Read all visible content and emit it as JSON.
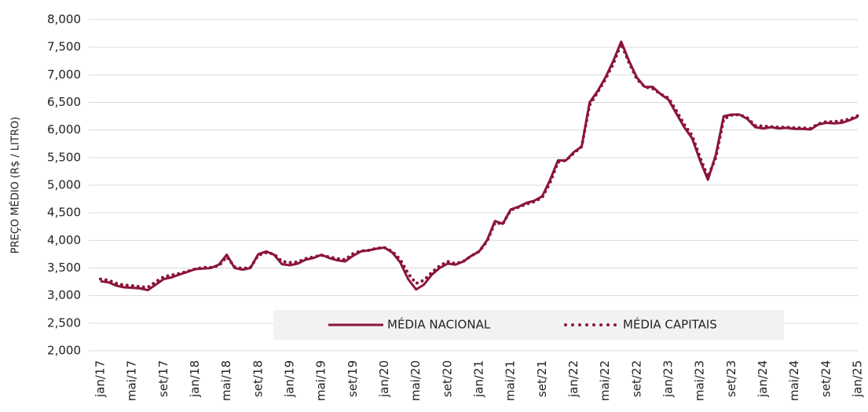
{
  "chart_data": {
    "type": "line",
    "y_label": "PREÇO MÉDIO (R$ / LITRO)",
    "categories": [
      "jan/17",
      null,
      null,
      null,
      "mai/17",
      null,
      null,
      null,
      "set/17",
      null,
      null,
      null,
      "jan/18",
      null,
      null,
      null,
      "mai/18",
      null,
      null,
      null,
      "set/18",
      null,
      null,
      null,
      "jan/19",
      null,
      null,
      null,
      "mai/19",
      null,
      null,
      null,
      "set/19",
      null,
      null,
      null,
      "jan/20",
      null,
      null,
      null,
      "mai/20",
      null,
      null,
      null,
      "set/20",
      null,
      null,
      null,
      "jan/21",
      null,
      null,
      null,
      "mai/21",
      null,
      null,
      null,
      "set/21",
      null,
      null,
      null,
      "jan/22",
      null,
      null,
      null,
      "mai/22",
      null,
      null,
      null,
      "set/22",
      null,
      null,
      null,
      "jan/23",
      null,
      null,
      null,
      "mai/23",
      null,
      null,
      null,
      "set/23",
      null,
      null,
      null,
      "jan/24",
      null,
      null,
      null,
      "mai/24",
      null,
      null,
      null,
      "set/24",
      null,
      null,
      null,
      "jan/25"
    ],
    "series": [
      {
        "name": "MÉDIA NACIONAL",
        "color": "#8b1538",
        "style": "solid",
        "values": [
          3260,
          3240,
          3180,
          3150,
          3140,
          3130,
          3100,
          3200,
          3300,
          3330,
          3380,
          3430,
          3480,
          3490,
          3500,
          3560,
          3740,
          3500,
          3470,
          3500,
          3750,
          3800,
          3740,
          3570,
          3550,
          3580,
          3650,
          3680,
          3740,
          3680,
          3640,
          3620,
          3720,
          3800,
          3820,
          3850,
          3870,
          3780,
          3600,
          3300,
          3110,
          3200,
          3380,
          3500,
          3580,
          3560,
          3620,
          3720,
          3800,
          4000,
          4350,
          4300,
          4560,
          4610,
          4680,
          4720,
          4800,
          5100,
          5450,
          5450,
          5600,
          5700,
          6500,
          6700,
          6950,
          7250,
          7600,
          7250,
          6950,
          6780,
          6780,
          6650,
          6550,
          6300,
          6050,
          5850,
          5450,
          5100,
          5550,
          6250,
          6280,
          6280,
          6200,
          6050,
          6030,
          6050,
          6030,
          6040,
          6020,
          6020,
          6010,
          6100,
          6130,
          6120,
          6130,
          6180,
          6240
        ]
      },
      {
        "name": "MÉDIA CAPITAIS",
        "color": "#8b1538",
        "style": "dotted",
        "values": [
          3300,
          3280,
          3220,
          3190,
          3180,
          3160,
          3150,
          3250,
          3340,
          3370,
          3400,
          3440,
          3480,
          3510,
          3510,
          3540,
          3700,
          3520,
          3490,
          3510,
          3730,
          3780,
          3750,
          3620,
          3600,
          3610,
          3670,
          3700,
          3730,
          3700,
          3670,
          3650,
          3760,
          3810,
          3820,
          3860,
          3870,
          3800,
          3650,
          3400,
          3220,
          3280,
          3420,
          3540,
          3620,
          3580,
          3620,
          3720,
          3800,
          3980,
          4320,
          4300,
          4550,
          4600,
          4660,
          4700,
          4780,
          5050,
          5420,
          5450,
          5580,
          5700,
          6450,
          6680,
          6920,
          7200,
          7560,
          7220,
          6920,
          6780,
          6750,
          6650,
          6580,
          6350,
          6100,
          5900,
          5500,
          5150,
          5500,
          6200,
          6270,
          6280,
          6220,
          6080,
          6070,
          6060,
          6050,
          6050,
          6040,
          6040,
          6030,
          6110,
          6150,
          6150,
          6170,
          6200,
          6260
        ]
      }
    ],
    "ylim": [
      2000,
      8000
    ],
    "yticks": [
      {
        "value": 2000,
        "label": "2,000"
      },
      {
        "value": 2500,
        "label": "2,500"
      },
      {
        "value": 3000,
        "label": "3,000"
      },
      {
        "value": 3500,
        "label": "3,500"
      },
      {
        "value": 4000,
        "label": "4,000"
      },
      {
        "value": 4500,
        "label": "4,500"
      },
      {
        "value": 5000,
        "label": "5,000"
      },
      {
        "value": 5500,
        "label": "5,500"
      },
      {
        "value": 6000,
        "label": "6,000"
      },
      {
        "value": 6500,
        "label": "6,500"
      },
      {
        "value": 7000,
        "label": "7,000"
      },
      {
        "value": 7500,
        "label": "7,500"
      },
      {
        "value": 8000,
        "label": "8,000"
      }
    ],
    "grid": true,
    "legend": "bottom"
  }
}
